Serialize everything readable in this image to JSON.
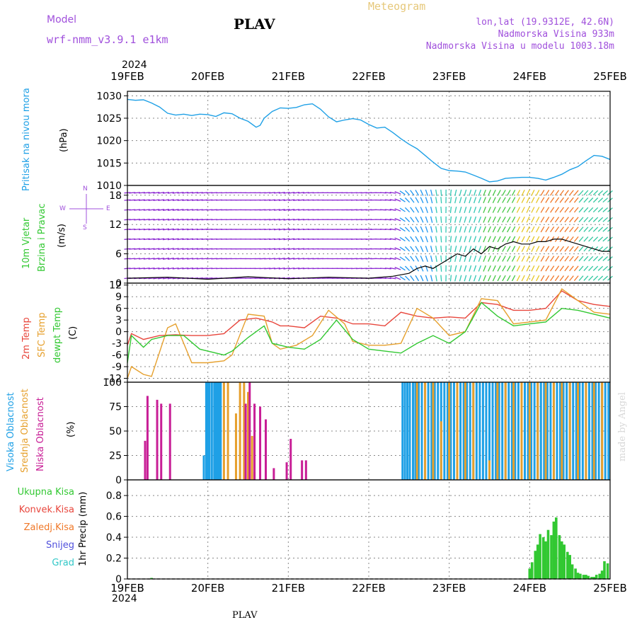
{
  "header": {
    "model_label": "Model",
    "model_name": "wrf-nmm_v3.9.1 e1km",
    "title": "PLAV",
    "meteogram": "Meteogram",
    "lonlat": "lon,lat (19.9312E, 42.6N)",
    "elevation": "Nadmorska Visina 933m",
    "model_elevation": "Nadmorska Visina u modelu 1003.18m",
    "year_top": "2024",
    "year_bottom": "2024",
    "footer_title": "PLAV",
    "watermark": "made by Angel"
  },
  "colors": {
    "pressure": "#1ea0e6",
    "temp2m": "#e8463c",
    "sfc": "#e6a02d",
    "dewpt": "#32c832",
    "high_cloud": "#1ea0e6",
    "mid_cloud": "#e6a02d",
    "low_cloud": "#c81e96",
    "total_precip": "#32c832",
    "wind_label_green": "#32c832",
    "wind_compass": "#a050dc",
    "grad": "#32c8c8",
    "snijeg": "#5050dc",
    "konvek": "#e8463c",
    "zaledj": "#f07828"
  },
  "chart_data": {
    "type": "meteogram",
    "x_axis": {
      "tick_labels": [
        "19FEB",
        "20FEB",
        "21FEB",
        "22FEB",
        "23FEB",
        "24FEB",
        "25FEB"
      ],
      "range_days": [
        0,
        6
      ]
    },
    "panels": [
      {
        "id": "pressure",
        "type": "line",
        "ylabel": [
          "Pritisak na nivou mora",
          "(hPa)"
        ],
        "ylim": [
          1010,
          1031
        ],
        "yticks": [
          1010,
          1015,
          1020,
          1025,
          1030
        ],
        "series": [
          {
            "x": [
              0,
              0.1,
              0.2,
              0.3,
              0.4,
              0.5,
              0.6,
              0.7,
              0.8,
              0.9,
              1.0,
              1.1,
              1.2,
              1.3,
              1.4,
              1.5,
              1.6,
              1.65,
              1.7,
              1.8,
              1.9,
              2.0,
              2.1,
              2.2,
              2.3,
              2.4,
              2.5,
              2.6,
              2.7,
              2.8,
              2.9,
              3.0,
              3.1,
              3.2,
              3.3,
              3.4,
              3.5,
              3.6,
              3.7,
              3.8,
              3.9,
              4.0,
              4.1,
              4.2,
              4.3,
              4.4,
              4.5,
              4.6,
              4.7,
              4.8,
              4.9,
              5.0,
              5.1,
              5.2,
              5.3,
              5.4,
              5.5,
              5.6,
              5.7,
              5.8,
              5.9,
              6.0
            ],
            "y": [
              1029.2,
              1029.0,
              1029.1,
              1028.4,
              1027.5,
              1026.1,
              1025.7,
              1025.9,
              1025.6,
              1025.9,
              1025.8,
              1025.4,
              1026.2,
              1026.0,
              1025.0,
              1024.3,
              1023.0,
              1023.4,
              1025.0,
              1026.5,
              1027.3,
              1027.2,
              1027.4,
              1028.0,
              1028.2,
              1027.0,
              1025.3,
              1024.2,
              1024.6,
              1024.9,
              1024.6,
              1023.6,
              1022.8,
              1023.0,
              1021.8,
              1020.4,
              1019.2,
              1018.2,
              1016.7,
              1015.2,
              1013.8,
              1013.3,
              1013.2,
              1013.0,
              1012.3,
              1011.6,
              1010.8,
              1011.0,
              1011.6,
              1011.7,
              1011.8,
              1011.8,
              1011.6,
              1011.2,
              1011.8,
              1012.5,
              1013.5,
              1014.2,
              1015.5,
              1016.7,
              1016.5,
              1015.8
            ]
          }
        ]
      },
      {
        "id": "wind",
        "type": "wind",
        "ylabel": [
          "10m Vjetar",
          "Brzina i Pravac",
          "(m/s)"
        ],
        "ylim": [
          0,
          20
        ],
        "yticks": [
          0,
          6,
          12,
          18
        ],
        "compass": {
          "north": "N",
          "south": "S",
          "west": "W",
          "east": "E"
        },
        "direction_deg": [
          {
            "x": 0.0,
            "deg": 85
          },
          {
            "x": 0.5,
            "deg": 80
          },
          {
            "x": 1.0,
            "deg": 85
          },
          {
            "x": 1.5,
            "deg": 90
          },
          {
            "x": 2.0,
            "deg": 80
          },
          {
            "x": 2.5,
            "deg": 90
          },
          {
            "x": 3.0,
            "deg": 85
          },
          {
            "x": 3.3,
            "deg": 100
          },
          {
            "x": 3.5,
            "deg": 140
          },
          {
            "x": 3.7,
            "deg": 160
          },
          {
            "x": 3.9,
            "deg": 175
          },
          {
            "x": 4.1,
            "deg": 195
          },
          {
            "x": 4.4,
            "deg": 200
          },
          {
            "x": 4.7,
            "deg": 210
          },
          {
            "x": 5.0,
            "deg": 205
          },
          {
            "x": 5.3,
            "deg": 215
          },
          {
            "x": 5.6,
            "deg": 220
          },
          {
            "x": 5.8,
            "deg": 225
          },
          {
            "x": 6.0,
            "deg": 230
          }
        ],
        "speed_series": [
          {
            "x": [
              0,
              0.5,
              1.0,
              1.5,
              2.0,
              2.5,
              3.0,
              3.3,
              3.5,
              3.6,
              3.7,
              3.8,
              3.9,
              4.0,
              4.1,
              4.2,
              4.3,
              4.4,
              4.5,
              4.6,
              4.7,
              4.8,
              4.9,
              5.0,
              5.1,
              5.2,
              5.3,
              5.4,
              5.5,
              5.6,
              5.7,
              5.8,
              5.9,
              6.0
            ],
            "y": [
              1.0,
              1.2,
              0.8,
              1.3,
              0.9,
              1.2,
              1.0,
              1.4,
              2.0,
              3.0,
              3.5,
              3.0,
              4.0,
              5.0,
              6.0,
              5.5,
              7.0,
              6.0,
              7.5,
              7.0,
              8.0,
              8.5,
              8.0,
              8.0,
              8.5,
              8.5,
              9.0,
              9.0,
              8.5,
              8.0,
              7.5,
              7.0,
              6.5,
              6.5
            ]
          }
        ]
      },
      {
        "id": "temp",
        "type": "line",
        "ylabel": [
          "2m Temp",
          "SFC Temp",
          "dewpt Temp",
          "(C)"
        ],
        "ylim": [
          -13,
          12.5
        ],
        "yticks": [
          -12,
          -9,
          -6,
          -3,
          0,
          3,
          6,
          9,
          12
        ],
        "series": [
          {
            "name": "2m Temp",
            "x": [
              0,
              0.05,
              0.2,
              0.4,
              0.6,
              0.8,
              1.0,
              1.2,
              1.4,
              1.6,
              1.8,
              1.9,
              2.0,
              2.2,
              2.4,
              2.6,
              2.8,
              3.0,
              3.2,
              3.4,
              3.6,
              3.8,
              4.0,
              4.2,
              4.4,
              4.6,
              4.8,
              5.0,
              5.2,
              5.4,
              5.6,
              5.8,
              6.0
            ],
            "y": [
              -3.5,
              -0.5,
              -2.0,
              -1.0,
              -0.8,
              -1.0,
              -1.0,
              -0.5,
              3.0,
              3.5,
              2.5,
              1.5,
              1.5,
              1.0,
              4.0,
              3.5,
              2.0,
              2.0,
              1.5,
              5.0,
              4.0,
              3.5,
              3.8,
              3.5,
              7.5,
              7.0,
              5.5,
              5.5,
              6.0,
              10.5,
              8.0,
              7.0,
              6.5
            ]
          },
          {
            "name": "SFC Temp",
            "x": [
              0,
              0.05,
              0.2,
              0.3,
              0.5,
              0.6,
              0.8,
              1.0,
              1.2,
              1.3,
              1.5,
              1.7,
              1.8,
              1.9,
              2.1,
              2.3,
              2.5,
              2.7,
              2.8,
              3.0,
              3.2,
              3.4,
              3.6,
              3.8,
              4.0,
              4.2,
              4.4,
              4.6,
              4.8,
              5.0,
              5.2,
              5.4,
              5.6,
              5.8,
              6.0
            ],
            "y": [
              -12,
              -9,
              -11,
              -11.5,
              1,
              2,
              -8,
              -8,
              -7.5,
              -6,
              4.5,
              4,
              -3,
              -4.5,
              -3.5,
              -1,
              5.5,
              2,
              -2.5,
              -3.5,
              -3.5,
              -3,
              6,
              3.5,
              -1,
              0,
              8.5,
              8,
              2,
              2.5,
              3,
              11,
              8,
              5,
              4.5
            ]
          },
          {
            "name": "dewpt Temp",
            "x": [
              0,
              0.05,
              0.2,
              0.3,
              0.5,
              0.7,
              0.9,
              1.0,
              1.2,
              1.3,
              1.5,
              1.7,
              1.8,
              2.0,
              2.2,
              2.4,
              2.6,
              2.8,
              3.0,
              3.2,
              3.4,
              3.6,
              3.8,
              4.0,
              4.2,
              4.4,
              4.6,
              4.8,
              5.0,
              5.2,
              5.4,
              5.6,
              5.8,
              6.0
            ],
            "y": [
              -8,
              -1,
              -4,
              -2,
              -1,
              -1,
              -4.5,
              -5,
              -6,
              -5,
              -1.5,
              1.5,
              -3,
              -4,
              -4.5,
              -2,
              3,
              -2,
              -4.5,
              -5,
              -5.5,
              -3,
              -1,
              -3,
              0,
              7.5,
              4,
              1.5,
              2,
              2.5,
              6,
              5.5,
              4.5,
              3.5
            ]
          }
        ]
      },
      {
        "id": "clouds",
        "type": "bar",
        "ylabel": [
          "Visoka Oblacnost",
          "Srednja Oblacnost",
          "Niska Oblacnost",
          "(%)"
        ],
        "ylim": [
          0,
          100
        ],
        "yticks": [
          0,
          25,
          50,
          75,
          100
        ],
        "high_clouds": {
          "x": [
            0.95,
            0.98,
            1.0,
            1.02,
            1.05,
            1.08,
            1.1,
            1.12,
            1.14,
            1.16,
            3.42,
            3.45,
            3.48,
            3.51,
            3.55,
            3.58,
            3.62,
            3.66,
            3.7,
            3.74,
            3.78,
            3.82,
            3.86,
            3.9,
            3.94,
            3.98,
            4.02,
            4.06,
            4.1,
            4.14,
            4.18,
            4.22,
            4.26,
            4.3,
            4.34,
            4.38,
            4.42,
            4.46,
            4.5,
            4.54,
            4.58,
            4.62,
            4.66,
            4.7,
            4.74,
            4.78,
            4.82,
            4.86,
            4.9,
            4.94,
            4.98,
            5.02,
            5.06,
            5.1,
            5.14,
            5.18,
            5.22,
            5.26,
            5.3,
            5.34,
            5.38,
            5.42,
            5.46,
            5.5,
            5.54,
            5.58,
            5.62,
            5.66,
            5.7,
            5.74,
            5.78,
            5.82,
            5.86,
            5.9,
            5.94,
            5.98
          ],
          "values": [
            25,
            100,
            100,
            100,
            100,
            100,
            100,
            100,
            100,
            100,
            100,
            100,
            100,
            100,
            100,
            100,
            100,
            100,
            100,
            100,
            100,
            100,
            100,
            100,
            100,
            100,
            100,
            100,
            100,
            100,
            100,
            100,
            100,
            100,
            100,
            100,
            100,
            100,
            100,
            100,
            100,
            100,
            100,
            100,
            100,
            100,
            100,
            100,
            100,
            100,
            100,
            100,
            100,
            100,
            100,
            100,
            100,
            100,
            100,
            100,
            100,
            100,
            100,
            100,
            100,
            100,
            100,
            100,
            100,
            100,
            100,
            100,
            100,
            100,
            100,
            100
          ]
        },
        "mid_clouds": {
          "x": [
            1.2,
            1.25,
            1.35,
            1.4,
            1.45,
            1.5,
            1.55,
            1.58,
            3.6,
            3.7,
            3.8,
            3.9,
            4.0,
            4.1,
            4.2,
            4.3,
            4.5,
            4.6,
            4.7,
            4.8,
            4.9,
            5.0,
            5.1,
            5.2,
            5.3,
            5.4,
            5.5,
            5.6,
            5.7,
            5.8,
            5.9
          ],
          "values": [
            100,
            100,
            68,
            100,
            100,
            90,
            45,
            8,
            100,
            100,
            100,
            60,
            100,
            100,
            100,
            100,
            20,
            100,
            100,
            100,
            100,
            100,
            100,
            100,
            100,
            100,
            100,
            100,
            100,
            100,
            100
          ]
        },
        "low_clouds": {
          "x": [
            0.22,
            0.25,
            0.37,
            0.42,
            0.53,
            1.47,
            1.52,
            1.58,
            1.65,
            1.72,
            1.82,
            1.98,
            2.03,
            2.17,
            2.22
          ],
          "values": [
            40,
            86,
            82,
            78,
            78,
            78,
            100,
            78,
            75,
            62,
            12,
            18,
            42,
            20,
            20
          ]
        }
      },
      {
        "id": "precip",
        "type": "bar",
        "ylabel": [
          "1hr Precip (mm)"
        ],
        "legend": [
          "Ukupna Kisa",
          "Konvek.Kisa",
          "Zaledj.Kisa",
          "Snijeg",
          "Grad"
        ],
        "ylim": [
          0,
          0.95
        ],
        "yticks": [
          0,
          0.2,
          0.4,
          0.6,
          0.8
        ],
        "total": {
          "x": [
            0.3,
            5.0,
            5.03,
            5.07,
            5.1,
            5.13,
            5.17,
            5.2,
            5.23,
            5.27,
            5.3,
            5.33,
            5.37,
            5.4,
            5.43,
            5.47,
            5.5,
            5.53,
            5.57,
            5.6,
            5.63,
            5.67,
            5.7,
            5.73,
            5.77,
            5.8,
            5.83,
            5.87,
            5.9,
            5.93,
            5.97
          ],
          "values": [
            0.01,
            0.1,
            0.16,
            0.27,
            0.33,
            0.43,
            0.4,
            0.36,
            0.47,
            0.42,
            0.55,
            0.59,
            0.42,
            0.36,
            0.33,
            0.26,
            0.23,
            0.14,
            0.1,
            0.06,
            0.05,
            0.04,
            0.04,
            0.03,
            0.02,
            0.02,
            0.04,
            0.05,
            0.08,
            0.17,
            0.15
          ]
        }
      }
    ]
  }
}
